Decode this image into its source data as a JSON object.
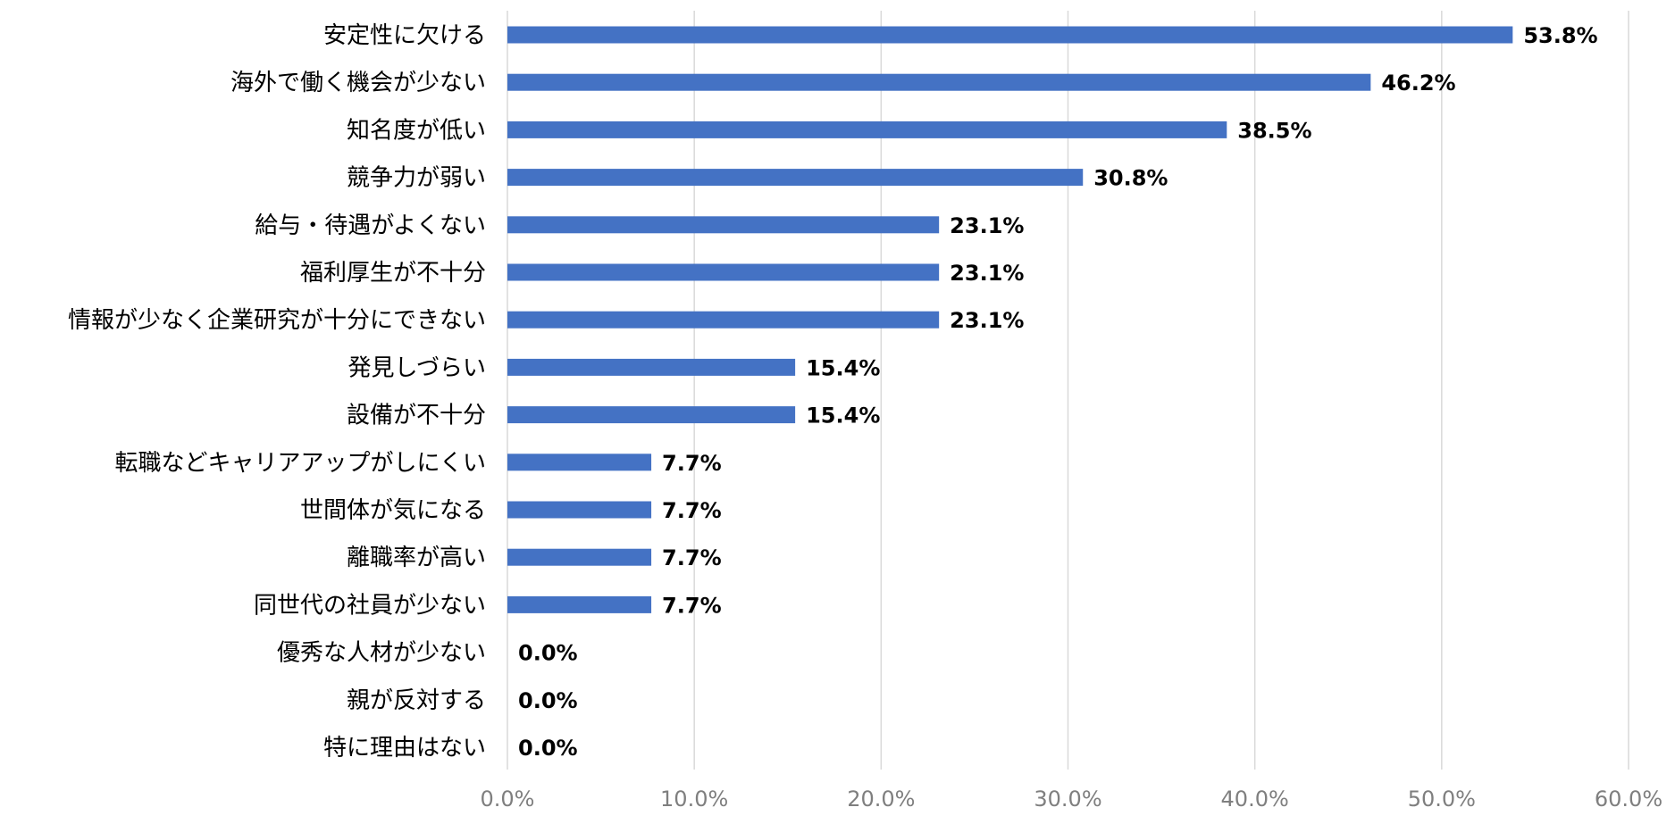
{
  "chart_data": {
    "type": "bar",
    "orientation": "horizontal",
    "title": "",
    "xlabel": "",
    "ylabel": "",
    "xlim": [
      0,
      60
    ],
    "grid": true,
    "legend": "none",
    "bar_color": "#4472c4",
    "categories": [
      "安定性に欠ける",
      "海外で働く機会が少ない",
      "知名度が低い",
      "競争力が弱い",
      "給与・待遇がよくない",
      "福利厚生が不十分",
      "情報が少なく企業研究が十分にできない",
      "発見しづらい",
      "設備が不十分",
      "転職などキャリアアップがしにくい",
      "世間体が気になる",
      "離職率が高い",
      "同世代の社員が少ない",
      "優秀な人材が少ない",
      "親が反対する",
      "特に理由はない"
    ],
    "values": [
      53.8,
      46.2,
      38.5,
      30.8,
      23.1,
      23.1,
      23.1,
      15.4,
      15.4,
      7.7,
      7.7,
      7.7,
      7.7,
      0.0,
      0.0,
      0.0
    ],
    "data_labels": [
      "53.8%",
      "46.2%",
      "38.5%",
      "30.8%",
      "23.1%",
      "23.1%",
      "23.1%",
      "15.4%",
      "15.4%",
      "7.7%",
      "7.7%",
      "7.7%",
      "7.7%",
      "0.0%",
      "0.0%",
      "0.0%"
    ],
    "x_ticks": [
      0,
      10,
      20,
      30,
      40,
      50,
      60
    ],
    "x_tick_labels": [
      "0.0%",
      "10.0%",
      "20.0%",
      "30.0%",
      "40.0%",
      "50.0%",
      "60.0%"
    ]
  }
}
